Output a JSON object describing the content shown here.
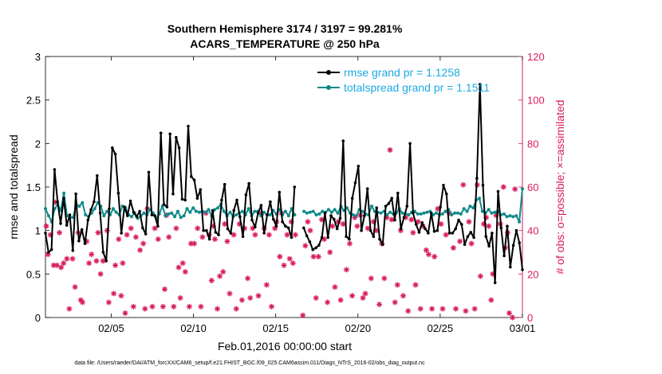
{
  "colors": {
    "rmse": "#000000",
    "spread": "#0e8a8a",
    "obs": "#d81b60",
    "legend_text": "#1ea9e2"
  },
  "chart_data": {
    "type": "line",
    "title_line1": "Southern Hemisphere 3174 / 3197 = 99.281%",
    "title_line2": "ACARS_TEMPERATURE @ 250 hPa",
    "xlabel": "Feb.01,2016 00:00:00 start",
    "ylabel_left": "rmse and totalspread",
    "ylabel_right": "# of obs: o=possible; ×=assimilated",
    "footnote": "data file: /Users/raeder/DAI/ATM_forcXX/CAM6_setup/f.e21.FHIST_BGC.f09_025.CAM6assim.011/Diags_NTrS_2016-02/obs_diag_output.nc",
    "x_start": 1,
    "x_end": 30,
    "x_ticks": [
      {
        "day": 5,
        "label": "02/05"
      },
      {
        "day": 10,
        "label": "02/10"
      },
      {
        "day": 15,
        "label": "02/15"
      },
      {
        "day": 20,
        "label": "02/20"
      },
      {
        "day": 25,
        "label": "02/25"
      },
      {
        "day": 30,
        "label": "03/01"
      }
    ],
    "ylim_left": [
      0,
      3
    ],
    "yticks_left": [
      "0",
      "0.5",
      "1",
      "1.5",
      "2",
      "2.5",
      "3"
    ],
    "ylim_right": [
      0,
      120
    ],
    "yticks_right": [
      "0",
      "20",
      "40",
      "60",
      "80",
      "100",
      "120"
    ],
    "gap_start_day": 16.3,
    "gap_end_day": 16.6,
    "series": [
      {
        "name": "rmse",
        "legend": "rmse grand pr = 1.1258",
        "values": [
          0.97,
          0.75,
          0.78,
          1.7,
          1.33,
          1.08,
          1.37,
          1.06,
          1.18,
          0.77,
          1.42,
          0.88,
          1.01,
          0.85,
          1.12,
          1.24,
          1.33,
          1.63,
          1.2,
          0.75,
          0.65,
          1.25,
          1.95,
          1.88,
          1.43,
          0.97,
          1.27,
          1.17,
          1.34,
          1.21,
          1.16,
          1.22,
          1.03,
          0.96,
          1.67,
          1.18,
          1.17,
          1.05,
          2.12,
          1.3,
          1.27,
          2.11,
          1.42,
          2.07,
          1.95,
          1.36,
          1.35,
          2.2,
          1.62,
          1.58,
          1.37,
          1.47,
          1.0,
          1.0,
          0.9,
          1.23,
          0.98,
          0.95,
          1.35,
          1.53,
          1.02,
          0.97,
          1.23,
          1.35,
          1.16,
          0.93,
          1.41,
          1.54,
          1.12,
          1.04,
          1.2,
          1.29,
          0.97,
          1.18,
          1.33,
          1.13,
          1.05,
          1.44,
          1.1,
          1.05,
          1.03,
          0.92,
          1.5,
          1.43,
          1.25,
          1.03,
          0.94,
          0.87,
          0.78,
          0.8,
          0.83,
          0.92,
          1.2,
          0.92,
          1.17,
          1.13,
          1.02,
          1.14,
          2.03,
          0.93,
          0.9,
          1.37,
          1.55,
          1.74,
          1.0,
          1.17,
          1.48,
          1.0,
          0.93,
          1.26,
          0.9,
          0.84,
          1.28,
          1.31,
          1.37,
          1.12,
          1.43,
          1.02,
          1.15,
          1.28,
          2.0,
          1.2,
          1.07,
          0.98,
          1.09,
          1.02,
          0.97,
          1.2,
          0.99,
          1.0,
          1.27,
          1.52,
          1.42,
          0.97,
          0.97,
          1.02,
          1.12,
          1.07,
          0.84,
          0.93,
          0.98,
          0.92,
          1.6,
          2.68,
          1.52,
          0.93,
          0.82,
          0.97,
          0.4,
          1.45,
          1.03,
          0.71,
          1.05,
          0.58,
          0.83,
          1.0,
          0.86,
          0.55
        ]
      },
      {
        "name": "totalspread",
        "legend": "totalspread grand pr = 1.1511",
        "values": [
          1.25,
          1.17,
          1.1,
          1.25,
          1.3,
          1.23,
          1.43,
          1.17,
          1.15,
          1.15,
          1.3,
          1.28,
          1.32,
          1.18,
          1.16,
          1.2,
          1.25,
          1.32,
          1.28,
          1.17,
          1.22,
          1.18,
          1.25,
          1.21,
          1.18,
          1.28,
          1.26,
          1.18,
          1.16,
          1.2,
          1.14,
          1.17,
          1.2,
          1.18,
          1.24,
          1.2,
          1.14,
          1.19,
          1.28,
          1.17,
          1.19,
          1.2,
          1.16,
          1.22,
          1.15,
          1.17,
          1.25,
          1.21,
          1.26,
          1.22,
          1.21,
          1.22,
          1.21,
          1.24,
          1.17,
          1.24,
          1.26,
          1.3,
          1.22,
          1.17,
          1.21,
          1.16,
          1.18,
          1.2,
          1.22,
          1.18,
          1.25,
          1.17,
          1.22,
          1.22,
          1.17,
          1.21,
          1.18,
          1.18,
          1.23,
          1.19,
          1.24,
          1.18,
          1.22,
          1.17,
          1.25,
          1.18,
          1.22,
          1.2,
          1.22,
          1.2,
          1.21,
          1.22,
          1.18,
          1.19,
          1.22,
          1.21,
          1.24,
          1.21,
          1.24,
          1.2,
          1.28,
          1.23,
          1.26,
          1.2,
          1.18,
          1.17,
          1.24,
          1.22,
          1.19,
          1.18,
          1.28,
          1.22,
          1.21,
          1.2,
          1.22,
          1.18,
          1.21,
          1.19,
          1.2,
          1.25,
          1.2,
          1.19,
          1.18,
          1.21,
          1.22,
          1.19,
          1.19,
          1.2,
          1.21,
          1.22,
          1.18,
          1.2,
          1.18,
          1.19,
          1.22,
          1.24,
          1.18,
          1.2,
          1.2,
          1.19,
          1.25,
          1.22,
          1.28,
          1.26,
          1.35,
          1.37,
          1.22,
          1.2,
          1.24,
          1.2,
          1.21,
          1.22,
          1.18,
          1.19,
          1.16,
          1.17,
          1.16,
          1.17,
          1.1,
          1.48
        ]
      }
    ],
    "obs_points": [
      [
        1.05,
        42
      ],
      [
        1.15,
        29
      ],
      [
        1.3,
        38
      ],
      [
        1.5,
        24
      ],
      [
        1.6,
        53
      ],
      [
        1.7,
        24
      ],
      [
        1.85,
        39
      ],
      [
        1.95,
        23
      ],
      [
        2.1,
        25
      ],
      [
        2.3,
        27
      ],
      [
        2.45,
        4
      ],
      [
        2.65,
        27
      ],
      [
        2.8,
        14
      ],
      [
        3.0,
        39
      ],
      [
        3.15,
        8
      ],
      [
        3.25,
        7
      ],
      [
        3.5,
        35
      ],
      [
        3.65,
        25
      ],
      [
        3.8,
        29
      ],
      [
        4.1,
        26
      ],
      [
        4.2,
        39
      ],
      [
        4.35,
        20
      ],
      [
        4.5,
        26
      ],
      [
        4.75,
        40
      ],
      [
        4.85,
        7
      ],
      [
        5.15,
        11
      ],
      [
        5.25,
        24
      ],
      [
        5.45,
        36
      ],
      [
        5.6,
        10
      ],
      [
        5.7,
        25
      ],
      [
        5.85,
        2
      ],
      [
        5.95,
        38
      ],
      [
        6.2,
        41
      ],
      [
        6.35,
        5
      ],
      [
        6.5,
        37
      ],
      [
        6.75,
        31
      ],
      [
        6.95,
        34
      ],
      [
        7.05,
        4
      ],
      [
        7.2,
        50
      ],
      [
        7.5,
        5
      ],
      [
        7.65,
        41
      ],
      [
        7.85,
        36
      ],
      [
        8.15,
        5
      ],
      [
        8.25,
        13
      ],
      [
        8.35,
        47
      ],
      [
        8.5,
        37
      ],
      [
        8.8,
        5
      ],
      [
        8.95,
        41
      ],
      [
        9.1,
        23
      ],
      [
        9.2,
        9
      ],
      [
        9.35,
        25
      ],
      [
        9.5,
        21
      ],
      [
        9.75,
        5
      ],
      [
        9.85,
        34
      ],
      [
        10.05,
        34
      ],
      [
        10.25,
        41
      ],
      [
        10.45,
        5
      ],
      [
        10.55,
        37
      ],
      [
        10.75,
        48
      ],
      [
        10.95,
        38
      ],
      [
        11.1,
        17
      ],
      [
        11.2,
        42
      ],
      [
        11.3,
        36
      ],
      [
        11.45,
        4
      ],
      [
        11.6,
        19
      ],
      [
        11.8,
        21
      ],
      [
        11.9,
        43
      ],
      [
        12.05,
        35
      ],
      [
        12.2,
        11
      ],
      [
        12.45,
        38
      ],
      [
        12.6,
        4
      ],
      [
        12.8,
        43
      ],
      [
        12.95,
        8
      ],
      [
        13.1,
        41
      ],
      [
        13.3,
        18
      ],
      [
        13.45,
        9
      ],
      [
        13.6,
        41
      ],
      [
        13.75,
        38
      ],
      [
        13.95,
        10
      ],
      [
        14.15,
        48
      ],
      [
        14.3,
        41
      ],
      [
        14.45,
        15
      ],
      [
        14.6,
        38
      ],
      [
        14.75,
        5
      ],
      [
        14.95,
        41
      ],
      [
        15.05,
        44
      ],
      [
        15.25,
        28
      ],
      [
        15.35,
        48
      ],
      [
        15.5,
        24
      ],
      [
        15.7,
        38
      ],
      [
        15.85,
        27
      ],
      [
        15.95,
        44
      ],
      [
        16.05,
        25
      ],
      [
        16.2,
        38
      ],
      [
        16.65,
        1
      ],
      [
        16.8,
        33
      ],
      [
        16.95,
        44
      ],
      [
        17.1,
        40
      ],
      [
        17.3,
        28
      ],
      [
        17.45,
        9
      ],
      [
        17.6,
        28
      ],
      [
        17.8,
        45
      ],
      [
        17.95,
        36
      ],
      [
        18.15,
        7
      ],
      [
        18.3,
        30
      ],
      [
        18.45,
        42
      ],
      [
        18.6,
        14
      ],
      [
        18.8,
        44
      ],
      [
        18.95,
        8
      ],
      [
        19.1,
        43
      ],
      [
        19.3,
        22
      ],
      [
        19.5,
        34
      ],
      [
        19.65,
        10
      ],
      [
        19.8,
        46
      ],
      [
        19.95,
        42
      ],
      [
        20.15,
        47
      ],
      [
        20.3,
        9
      ],
      [
        20.45,
        11
      ],
      [
        20.6,
        41
      ],
      [
        20.8,
        18
      ],
      [
        20.95,
        44
      ],
      [
        21.1,
        40
      ],
      [
        21.3,
        6
      ],
      [
        21.45,
        34
      ],
      [
        21.6,
        18
      ],
      [
        21.75,
        46
      ],
      [
        21.95,
        77
      ],
      [
        22.05,
        45
      ],
      [
        22.25,
        7
      ],
      [
        22.4,
        15
      ],
      [
        22.6,
        40
      ],
      [
        22.75,
        10
      ],
      [
        22.9,
        46
      ],
      [
        23.05,
        3
      ],
      [
        23.25,
        45
      ],
      [
        23.35,
        39
      ],
      [
        23.5,
        15
      ],
      [
        23.65,
        44
      ],
      [
        23.8,
        4
      ],
      [
        23.95,
        42
      ],
      [
        24.15,
        31
      ],
      [
        24.3,
        29
      ],
      [
        24.5,
        4
      ],
      [
        24.65,
        28
      ],
      [
        24.85,
        50
      ],
      [
        25.05,
        43
      ],
      [
        25.15,
        4
      ],
      [
        25.35,
        38
      ],
      [
        25.55,
        48
      ],
      [
        25.8,
        32
      ],
      [
        25.95,
        4
      ],
      [
        26.2,
        35
      ],
      [
        26.4,
        61
      ],
      [
        26.55,
        3
      ],
      [
        26.75,
        44
      ],
      [
        26.9,
        34
      ],
      [
        27.1,
        4
      ],
      [
        27.25,
        61
      ],
      [
        27.45,
        19
      ],
      [
        27.65,
        43
      ],
      [
        27.8,
        46
      ],
      [
        27.95,
        42
      ],
      [
        28.1,
        8
      ],
      [
        28.2,
        20
      ],
      [
        28.4,
        47
      ],
      [
        28.65,
        43
      ],
      [
        28.85,
        60
      ],
      [
        28.95,
        32
      ],
      [
        29.1,
        39
      ],
      [
        29.2,
        2
      ],
      [
        29.4,
        0
      ],
      [
        29.55,
        59
      ]
    ]
  }
}
